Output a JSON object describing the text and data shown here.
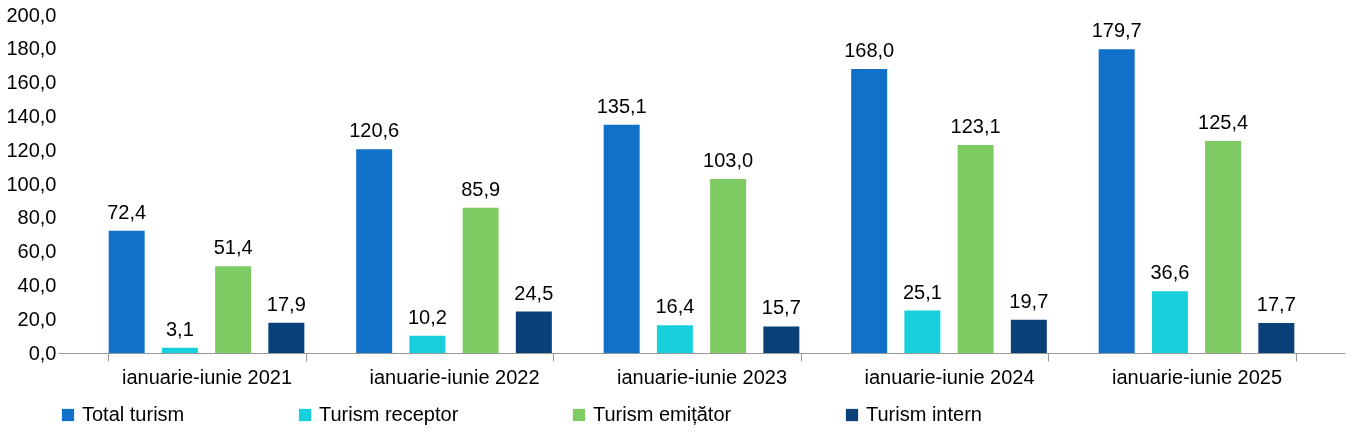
{
  "chart_data": {
    "type": "bar",
    "categories": [
      "ianuarie-iunie 2021",
      "ianuarie-iunie 2022",
      "ianuarie-iunie 2023",
      "ianuarie-iunie 2024",
      "ianuarie-iunie 2025"
    ],
    "series": [
      {
        "name": "Total turism",
        "color": "#1170c8",
        "values": [
          72.4,
          120.6,
          135.1,
          168.0,
          179.7
        ],
        "value_labels": [
          "72,4",
          "120,6",
          "135,1",
          "168,0",
          "179,7"
        ]
      },
      {
        "name": "Turism receptor",
        "color": "#17d0dc",
        "values": [
          3.1,
          10.2,
          16.4,
          25.1,
          36.6
        ],
        "value_labels": [
          "3,1",
          "10,2",
          "16,4",
          "25,1",
          "36,6"
        ]
      },
      {
        "name": "Turism emițător",
        "color": "#7ecb64",
        "values": [
          51.4,
          85.9,
          103.0,
          123.1,
          125.4
        ],
        "value_labels": [
          "51,4",
          "85,9",
          "103,0",
          "123,1",
          "125,4"
        ]
      },
      {
        "name": "Turism intern",
        "color": "#0b4179",
        "values": [
          17.9,
          24.5,
          15.7,
          19.7,
          17.7
        ],
        "value_labels": [
          "17,9",
          "24,5",
          "15,7",
          "19,7",
          "17,7"
        ]
      }
    ],
    "ylim": [
      0,
      200
    ],
    "yticks": [
      {
        "value": 0,
        "label": "0,0"
      },
      {
        "value": 20,
        "label": "20,0"
      },
      {
        "value": 40,
        "label": "40,0"
      },
      {
        "value": 60,
        "label": "60,0"
      },
      {
        "value": 80,
        "label": "80,0"
      },
      {
        "value": 100,
        "label": "100,0"
      },
      {
        "value": 120,
        "label": "120,0"
      },
      {
        "value": 140,
        "label": "140,0"
      },
      {
        "value": 160,
        "label": "160,0"
      },
      {
        "value": 180,
        "label": "180,0"
      },
      {
        "value": 200,
        "label": "200,0"
      }
    ],
    "grid": false,
    "legend": "bottom"
  }
}
